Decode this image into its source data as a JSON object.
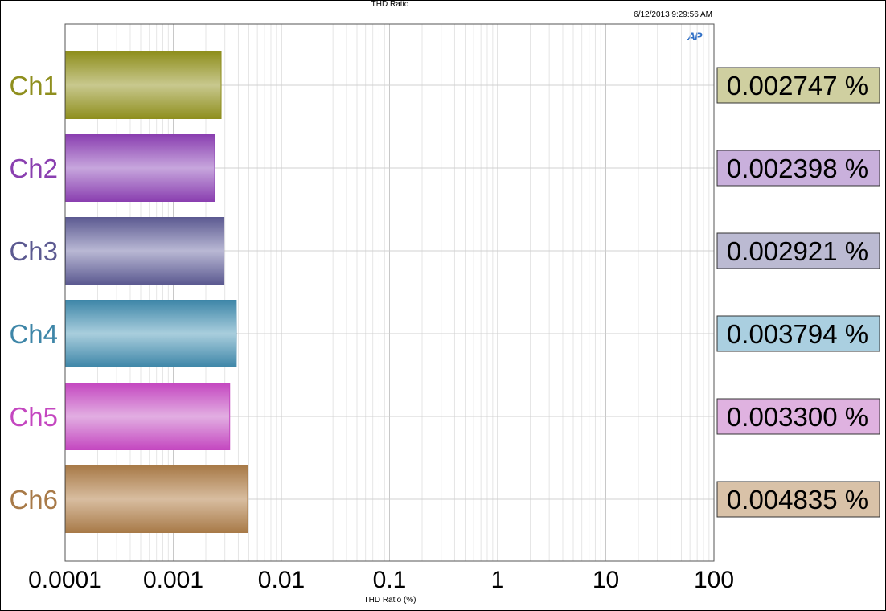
{
  "title": "THD Ratio",
  "timestamp": "6/12/2013 9:29:56 AM",
  "logo": "AP",
  "chart_data": {
    "type": "bar",
    "orientation": "horizontal",
    "xscale": "log",
    "xlim": [
      0.0001,
      100
    ],
    "xlabel": "THD Ratio (%)",
    "xticks": [
      "0.0001",
      "0.001",
      "0.01",
      "0.1",
      "1",
      "10",
      "100"
    ],
    "grid": true,
    "categories": [
      "Ch1",
      "Ch2",
      "Ch3",
      "Ch4",
      "Ch5",
      "Ch6"
    ],
    "values": [
      0.002747,
      0.002398,
      0.002921,
      0.003794,
      0.0033,
      0.004835
    ],
    "value_labels": [
      "0.002747 %",
      "0.002398 %",
      "0.002921 %",
      "0.003794 %",
      "0.003300 %",
      "0.004835 %"
    ],
    "colors": [
      "#8f8f1e",
      "#8a3fb0",
      "#5c5a91",
      "#3e86a8",
      "#c447c0",
      "#a87a48"
    ],
    "fills": [
      "#c8c88e",
      "#c7a6dd",
      "#b9b8d4",
      "#a9cedd",
      "#e2aee2",
      "#d8bda0"
    ],
    "label_bg": [
      "#cfcfa0",
      "#c9b0dc",
      "#bbbad2",
      "#aacfe0",
      "#dfb2e0",
      "#d9c2a8"
    ]
  }
}
